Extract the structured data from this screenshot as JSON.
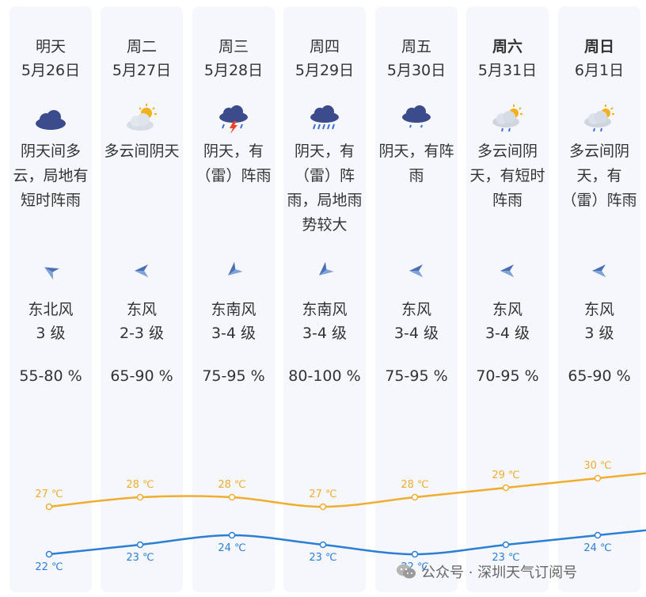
{
  "days": [
    {
      "day": "明天",
      "date": "5月26日",
      "weekend": false,
      "icon": "cloud-icon",
      "desc": "阴天间多云，局地有短时阵雨",
      "wind_dir": "东北风",
      "wind_level": "3 级",
      "wind_icon": "wind-arrow-icon",
      "wind_rot": 30,
      "humidity": "55-80 %",
      "high": "27 ℃",
      "low": "22 ℃",
      "high_v": 27,
      "low_v": 22
    },
    {
      "day": "周二",
      "date": "5月27日",
      "weekend": false,
      "icon": "sun-cloud-icon",
      "desc": "多云间阴天",
      "wind_dir": "东风",
      "wind_level": "2-3 级",
      "wind_icon": "wind-arrow-icon",
      "wind_rot": 0,
      "humidity": "65-90 %",
      "high": "28 ℃",
      "low": "23 ℃",
      "high_v": 28,
      "low_v": 23
    },
    {
      "day": "周三",
      "date": "5月28日",
      "weekend": false,
      "icon": "thunder-rain-icon",
      "desc": "阴天，有（雷）阵雨",
      "wind_dir": "东南风",
      "wind_level": "3-4 级",
      "wind_icon": "wind-arrow-icon",
      "wind_rot": -40,
      "humidity": "75-95 %",
      "high": "28 ℃",
      "low": "24 ℃",
      "high_v": 28,
      "low_v": 24
    },
    {
      "day": "周四",
      "date": "5月29日",
      "weekend": false,
      "icon": "heavy-rain-icon",
      "desc": "阴天，有（雷）阵雨，局地雨势较大",
      "wind_dir": "东南风",
      "wind_level": "3-4 级",
      "wind_icon": "wind-arrow-icon",
      "wind_rot": -40,
      "humidity": "80-100 %",
      "high": "27 ℃",
      "low": "23 ℃",
      "high_v": 27,
      "low_v": 23
    },
    {
      "day": "周五",
      "date": "5月30日",
      "weekend": false,
      "icon": "shower-icon",
      "desc": "阴天，有阵雨",
      "wind_dir": "东风",
      "wind_level": "3-4 级",
      "wind_icon": "wind-arrow-icon",
      "wind_rot": 0,
      "humidity": "75-95 %",
      "high": "28 ℃",
      "low": "22 ℃",
      "high_v": 28,
      "low_v": 22
    },
    {
      "day": "周六",
      "date": "5月31日",
      "weekend": true,
      "icon": "sun-rain-icon",
      "desc": "多云间阴天，有短时阵雨",
      "wind_dir": "东风",
      "wind_level": "3-4 级",
      "wind_icon": "wind-arrow-icon",
      "wind_rot": 0,
      "humidity": "70-95 %",
      "high": "29 ℃",
      "low": "23 ℃",
      "high_v": 29,
      "low_v": 23
    },
    {
      "day": "周日",
      "date": "6月1日",
      "weekend": true,
      "icon": "sun-rain-icon",
      "desc": "多云间阴天，有（雷）阵雨",
      "wind_dir": "东风",
      "wind_level": "3 级",
      "wind_icon": "wind-arrow-icon",
      "wind_rot": 0,
      "humidity": "65-90 %",
      "high": "30 ℃",
      "low": "24 ℃",
      "high_v": 30,
      "low_v": 24
    }
  ],
  "colors": {
    "high": "#f0ad2e",
    "low": "#2b7fd4",
    "column_bg": "#f5f7fc",
    "text": "#333333",
    "cloud": "#3b4b8c"
  },
  "watermark": {
    "icon": "wechat-icon",
    "text": "公众号 · 深圳天气订阅号"
  }
}
